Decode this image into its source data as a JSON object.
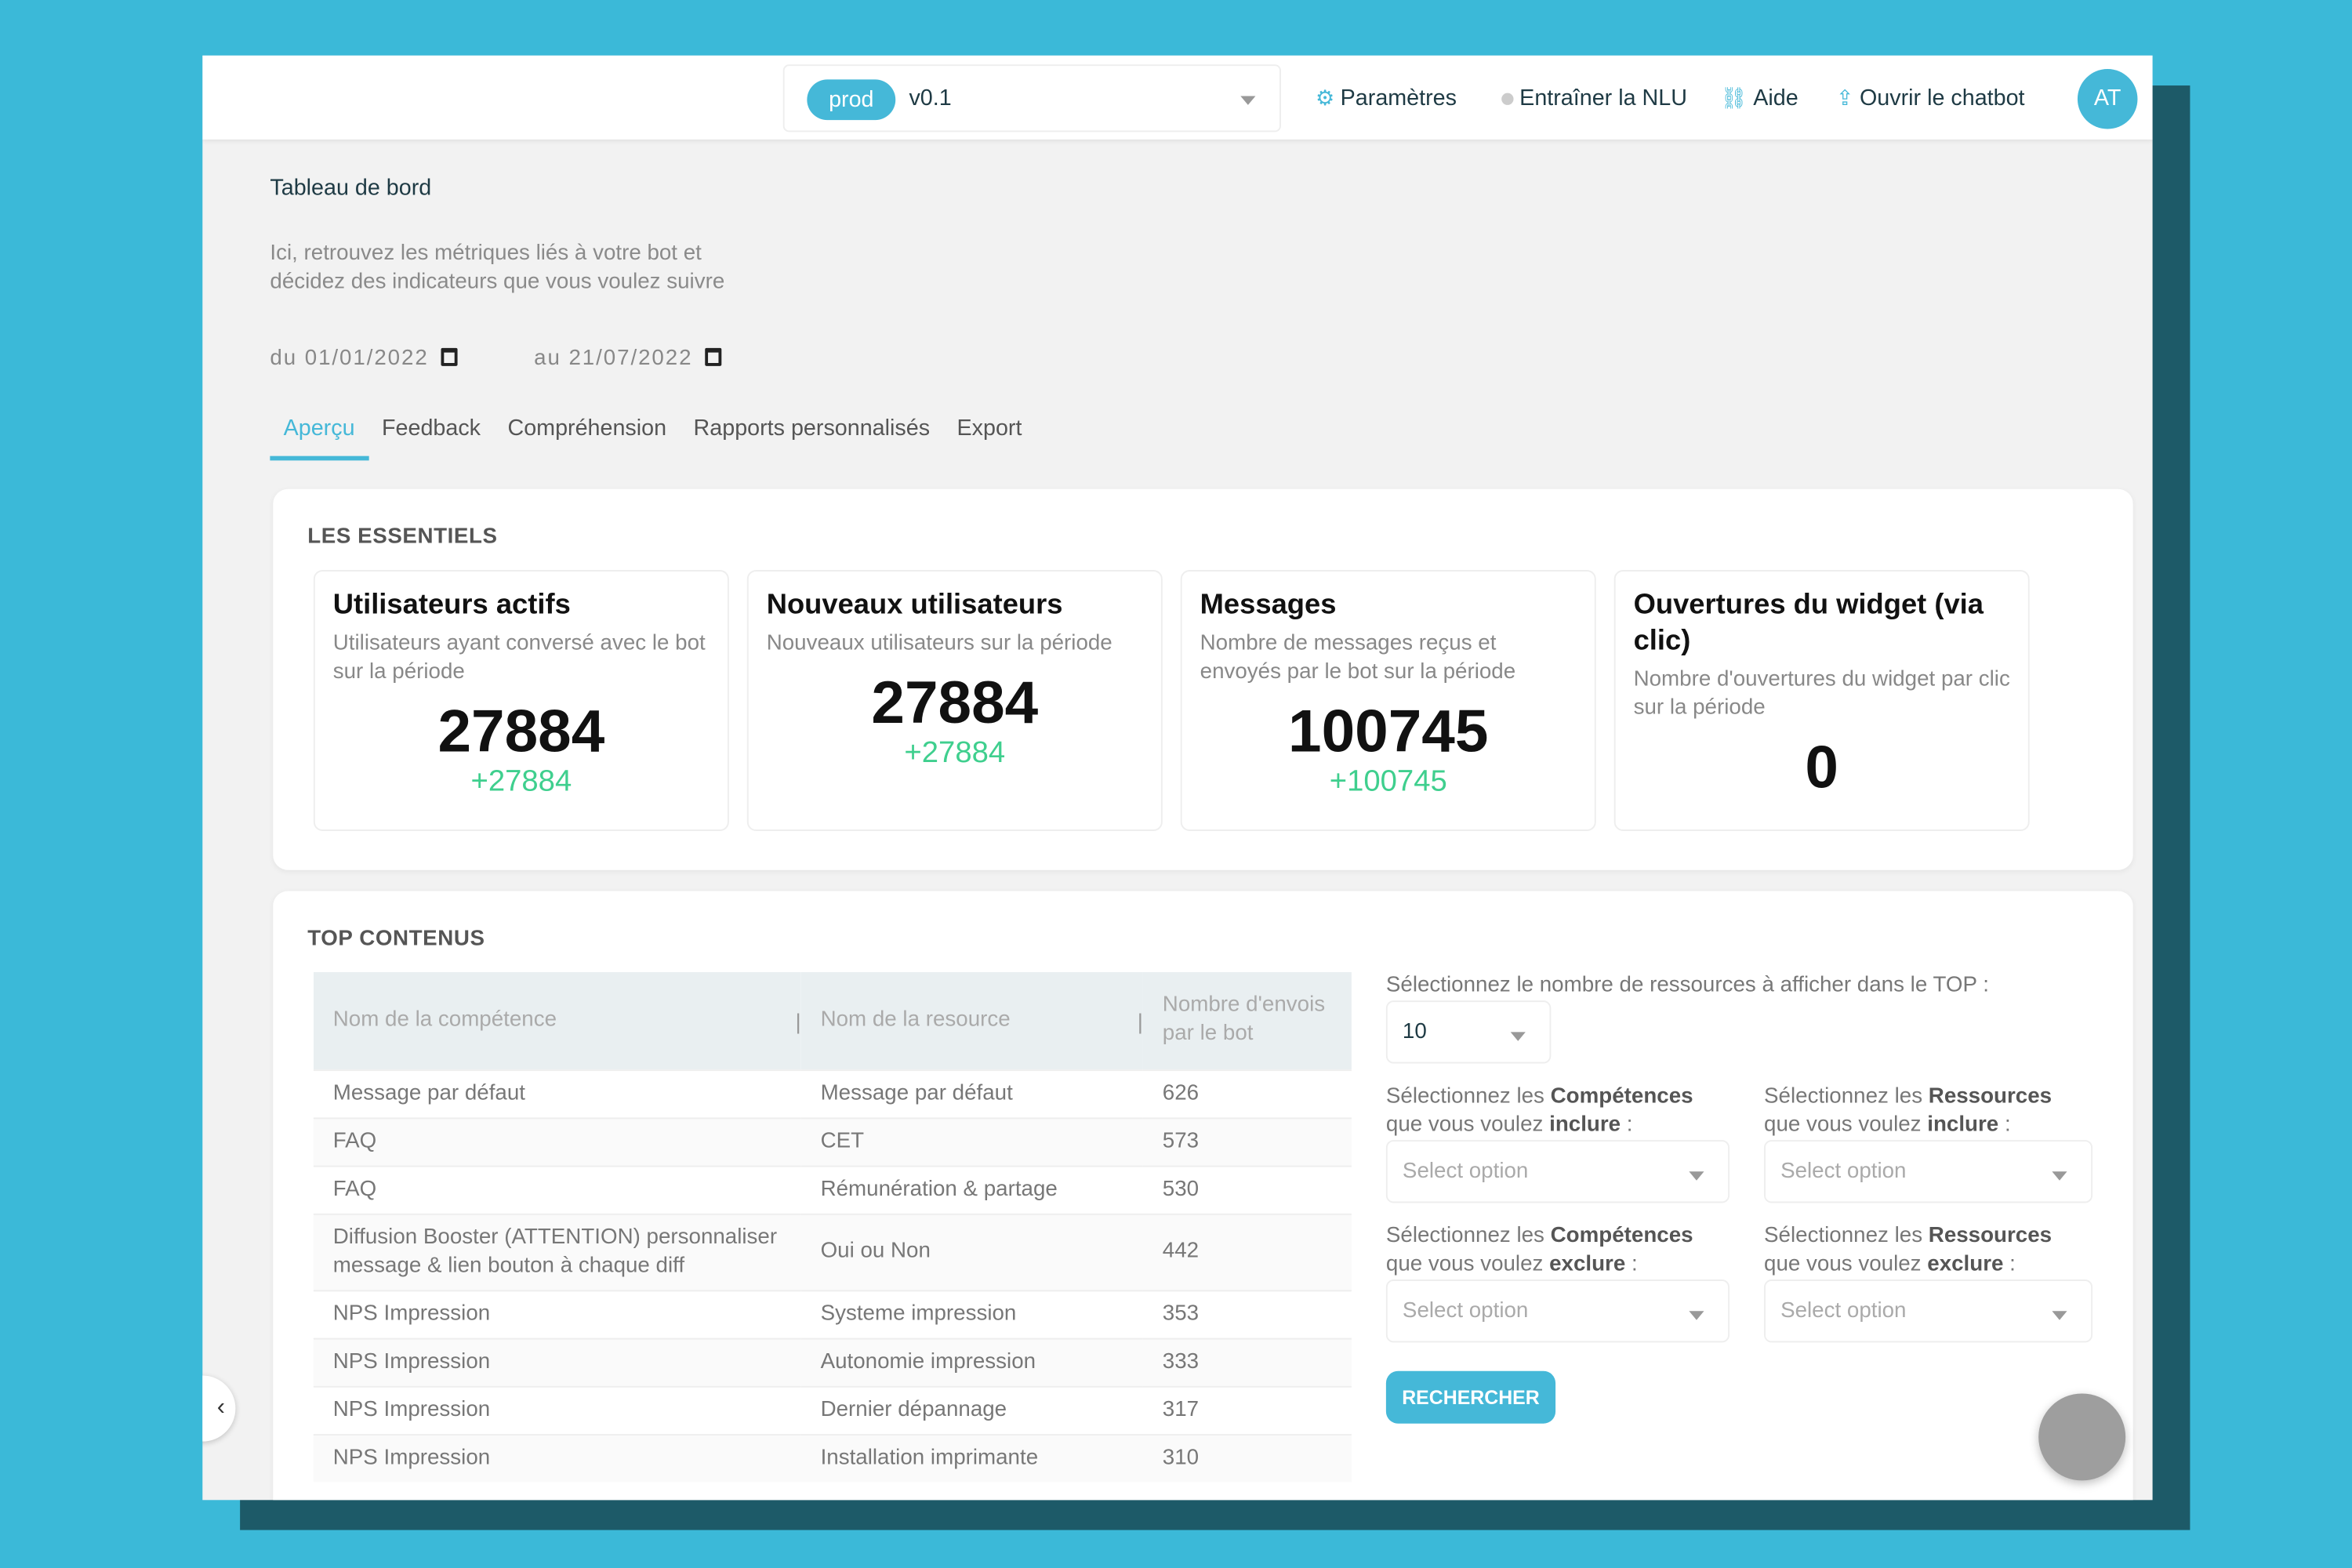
{
  "colors": {
    "accent": "#45b8d8",
    "positive": "#3fcf8e",
    "background": "#3bb9d8"
  },
  "header": {
    "env_badge": "prod",
    "version": "v0.1",
    "settings": "Paramètres",
    "train": "Entraîner la NLU",
    "help": "Aide",
    "open_chatbot": "Ouvrir le chatbot",
    "avatar": "AT",
    "icons": {
      "settings": "gear-icon",
      "train": "status-dot-icon",
      "help": "link-icon",
      "open_chatbot": "share-icon"
    }
  },
  "page": {
    "title": "Tableau de bord",
    "description": "Ici, retrouvez les métriques liés à votre bot et décidez des indicateurs que vous voulez suivre",
    "date_from_label": "du",
    "date_from": "01/01/2022",
    "date_to_label": "au",
    "date_to": "21/07/2022"
  },
  "tabs": [
    {
      "label": "Aperçu",
      "active": true
    },
    {
      "label": "Feedback"
    },
    {
      "label": "Compréhension"
    },
    {
      "label": "Rapports personnalisés"
    },
    {
      "label": "Export"
    }
  ],
  "essentials": {
    "title": "LES ESSENTIELS",
    "metrics": [
      {
        "title": "Utilisateurs actifs",
        "description": "Utilisateurs ayant conversé avec le bot sur la période",
        "value": "27884",
        "delta": "+27884"
      },
      {
        "title": "Nouveaux utilisateurs",
        "description": "Nouveaux utilisateurs sur la période",
        "value": "27884",
        "delta": "+27884"
      },
      {
        "title": "Messages",
        "description": "Nombre de messages reçus et envoyés par le bot sur la période",
        "value": "100745",
        "delta": "+100745"
      },
      {
        "title": "Ouvertures du widget (via clic)",
        "description": "Nombre d'ouvertures du widget par clic sur la période",
        "value": "0"
      }
    ]
  },
  "top": {
    "title": "TOP CONTENUS",
    "columns": [
      "Nom de la compétence",
      "Nom de la resource",
      "Nombre d'envois par le bot"
    ],
    "rows": [
      [
        "Message par défaut",
        "Message par défaut",
        "626"
      ],
      [
        "FAQ",
        "CET",
        "573"
      ],
      [
        "FAQ",
        "Rémunération & partage",
        "530"
      ],
      [
        "Diffusion Booster (ATTENTION) personnaliser message & lien bouton à chaque diff",
        "Oui ou Non",
        "442"
      ],
      [
        "NPS Impression",
        "Systeme impression",
        "353"
      ],
      [
        "NPS Impression",
        "Autonomie impression",
        "333"
      ],
      [
        "NPS Impression",
        "Dernier dépannage",
        "317"
      ],
      [
        "NPS Impression",
        "Installation imprimante",
        "310"
      ]
    ],
    "filters": {
      "count_label": "Sélectionnez le nombre de ressources à afficher dans le TOP :",
      "count_value": "10",
      "select_prefix": "Sélectionnez les",
      "competences": "Compétences",
      "ressources": "Ressources",
      "middle": "que vous voulez",
      "include": "inclure",
      "exclude": "exclure",
      "colon": " :",
      "placeholder": "Select option",
      "search_button": "RECHERCHER"
    }
  }
}
